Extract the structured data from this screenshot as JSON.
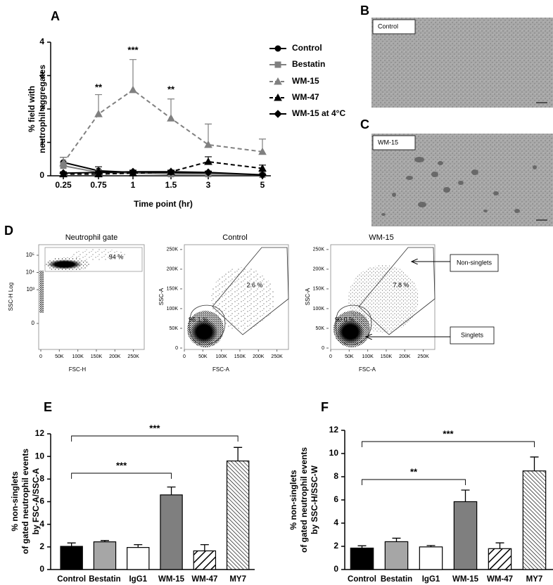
{
  "chart_data": [
    {
      "type": "line",
      "panel": "A",
      "categories": [
        "0.25",
        "0.75",
        "1",
        "1.5",
        "3",
        "5"
      ],
      "xlabel": "Time point (hr)",
      "ylabel": [
        "% field with",
        "neutrophil aggregates"
      ],
      "ylim": [
        0,
        4
      ],
      "yticks": [
        0,
        1,
        2,
        3,
        4
      ],
      "series": [
        {
          "name": "Control",
          "color": "#000000",
          "marker": "circle",
          "linestyle": "solid",
          "values": [
            0.4,
            0.15,
            0.1,
            0.1,
            0.08,
            0.02
          ],
          "errors": [
            0.15,
            0.12,
            0.05,
            0.04,
            0.05,
            0.03
          ]
        },
        {
          "name": "Bestatin",
          "color": "#808080",
          "marker": "square",
          "linestyle": "solid",
          "values": [
            0.3,
            0.1,
            0.08,
            0.05,
            0.05,
            0.03
          ],
          "errors": [
            0.1,
            0.08,
            0.04,
            0.03,
            0.03,
            0.02
          ]
        },
        {
          "name": "WM-15",
          "color": "#808080",
          "marker": "triangle",
          "linestyle": "dashed",
          "values": [
            0.38,
            1.85,
            2.57,
            1.72,
            0.93,
            0.72
          ],
          "errors": [
            0.17,
            0.58,
            0.91,
            0.58,
            0.62,
            0.38
          ]
        },
        {
          "name": "WM-47",
          "color": "#000000",
          "marker": "triangle",
          "linestyle": "dashed",
          "values": [
            0.05,
            0.05,
            0.08,
            0.12,
            0.42,
            0.22
          ],
          "errors": [
            0.03,
            0.03,
            0.04,
            0.05,
            0.15,
            0.1
          ]
        },
        {
          "name": "WM-15 at 4°C",
          "color": "#000000",
          "marker": "diamond",
          "linestyle": "solid",
          "values": [
            0.08,
            0.1,
            0.12,
            0.12,
            0.1,
            0.03
          ],
          "errors": [
            0.04,
            0.05,
            0.05,
            0.04,
            0.04,
            0.02
          ]
        }
      ],
      "annotations": [
        "**",
        "***",
        "**"
      ]
    },
    {
      "type": "bar",
      "panel": "E",
      "categories": [
        "Control",
        "Bestatin",
        "IgG1",
        "WM-15",
        "WM-47",
        "MY7"
      ],
      "values": [
        2.05,
        2.45,
        1.95,
        6.6,
        1.65,
        9.6
      ],
      "errors": [
        0.3,
        0.12,
        0.25,
        0.7,
        0.55,
        1.2
      ],
      "colors": [
        "#000000",
        "#a6a6a6",
        "#ffffff",
        "#7f7f7f",
        "#ffffff",
        "#ffffff"
      ],
      "hatch": [
        null,
        null,
        null,
        null,
        "/",
        "\\\\"
      ],
      "ylabel": [
        "% non-singlets",
        "of gated neutrophil events",
        "by FSC-A/SSC-A"
      ],
      "ylim": [
        0,
        12
      ],
      "yticks": [
        0,
        2,
        4,
        6,
        8,
        10,
        12
      ],
      "significance": [
        "***",
        "***"
      ]
    },
    {
      "type": "bar",
      "panel": "F",
      "categories": [
        "Control",
        "Bestatin",
        "IgG1",
        "WM-15",
        "WM-47",
        "MY7"
      ],
      "values": [
        1.85,
        2.4,
        1.95,
        5.85,
        1.8,
        8.5
      ],
      "errors": [
        0.2,
        0.3,
        0.12,
        1.0,
        0.5,
        1.2
      ],
      "colors": [
        "#000000",
        "#a6a6a6",
        "#ffffff",
        "#7f7f7f",
        "#ffffff",
        "#ffffff"
      ],
      "hatch": [
        null,
        null,
        null,
        null,
        "/",
        "\\\\"
      ],
      "ylabel": [
        "% non-singlets",
        "of gated neutrophil events",
        "by SSC-H/SSC-W"
      ],
      "ylim": [
        0,
        12
      ],
      "yticks": [
        0,
        2,
        4,
        6,
        8,
        10,
        12
      ],
      "significance": [
        "**",
        "***"
      ]
    }
  ],
  "micrographs": [
    {
      "panel": "B",
      "label": "Control"
    },
    {
      "panel": "C",
      "label": "WM-15"
    }
  ],
  "flow_cytometry": {
    "panel": "D",
    "plots": [
      {
        "title": "Neutrophil gate",
        "xlabel": "FSC-H",
        "ylabel": "SSC-H Log",
        "yscale": "log",
        "xlim": [
          0,
          262144
        ],
        "xticks": [
          0,
          {
            "value": 50000,
            "label": "50K"
          },
          {
            "value": 100000,
            "label": "100K"
          },
          {
            "value": 150000,
            "label": "150K"
          },
          {
            "value": 200000,
            "label": "200K"
          },
          {
            "value": 250000,
            "label": "250K"
          }
        ],
        "ylim": [
          0,
          262144
        ],
        "yticks": [
          {
            "value": 100000,
            "label": "10⁵"
          },
          {
            "value": 10000,
            "label": "10⁴"
          },
          {
            "value": 1000,
            "label": "10³"
          },
          0
        ],
        "gates": [
          "94 %"
        ]
      },
      {
        "title": "Control",
        "xlabel": "FSC-A",
        "ylabel": "SSC-A",
        "yscale": "linear",
        "xlim": [
          0,
          262144
        ],
        "xticks": [
          0,
          {
            "value": 50000,
            "label": "50K"
          },
          {
            "value": 100000,
            "label": "100K"
          },
          {
            "value": 150000,
            "label": "150K"
          },
          {
            "value": 200000,
            "label": "200K"
          },
          {
            "value": 250000,
            "label": "250K"
          }
        ],
        "ylim": [
          0,
          262144
        ],
        "yticks": [
          0,
          {
            "value": 50000,
            "label": "50K"
          },
          {
            "value": 100000,
            "label": "100K"
          },
          {
            "value": 150000,
            "label": "150K"
          },
          {
            "value": 200000,
            "label": "200K"
          },
          {
            "value": 250000,
            "label": "250K"
          }
        ],
        "gates": [
          "2.6 %",
          "96.1 %"
        ]
      },
      {
        "title": "WM-15",
        "xlabel": "FSC-A",
        "ylabel": "SSC-A",
        "yscale": "linear",
        "xlim": [
          0,
          262144
        ],
        "xticks": [
          0,
          {
            "value": 50000,
            "label": "50K"
          },
          {
            "value": 100000,
            "label": "100K"
          },
          {
            "value": 150000,
            "label": "150K"
          },
          {
            "value": 200000,
            "label": "200K"
          },
          {
            "value": 250000,
            "label": "250K"
          }
        ],
        "ylim": [
          0,
          262144
        ],
        "yticks": [
          0,
          {
            "value": 50000,
            "label": "50K"
          },
          {
            "value": 100000,
            "label": "100K"
          },
          {
            "value": 150000,
            "label": "150K"
          },
          {
            "value": 200000,
            "label": "200K"
          },
          {
            "value": 250000,
            "label": "250K"
          }
        ],
        "gates": [
          "7.8 %",
          "90.0 %"
        ]
      }
    ],
    "callouts": [
      "Non-singlets",
      "Singlets"
    ]
  }
}
